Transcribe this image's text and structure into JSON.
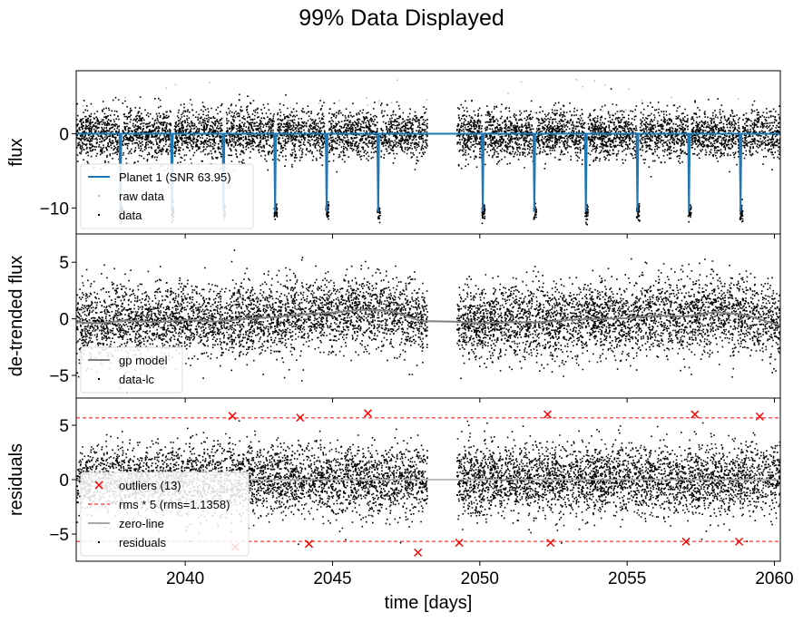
{
  "figure": {
    "title": "99% Data Displayed"
  },
  "colors": {
    "planet": "#1f77b4",
    "raw": "#bbbbbb",
    "data": "#000000",
    "gp": "#808080",
    "outlier": "#ff0000",
    "rms": "#ff0000",
    "zero": "#aaaaaa"
  },
  "chart_data": [
    {
      "type": "scatter",
      "ylabel": "flux",
      "xlim": [
        2036.3,
        2060.2
      ],
      "ylim": [
        -13.5,
        8.5
      ],
      "yticks": [
        -10,
        0
      ],
      "yticklabels": [
        "−10",
        "0"
      ],
      "legend": {
        "placement": "lower-left",
        "entries": [
          "Planet 1 (SNR 63.95)",
          "raw data",
          "data"
        ]
      },
      "series": [
        {
          "name": "Planet 1 (SNR 63.95)",
          "kind": "transit-model",
          "baseline": 0,
          "depth": -10.5,
          "transit_times": [
            2037.8,
            2039.55,
            2041.3,
            2043.05,
            2044.8,
            2046.55,
            2050.1,
            2051.85,
            2053.6,
            2055.35,
            2057.1,
            2058.85
          ]
        },
        {
          "name": "raw data",
          "kind": "points",
          "noise_sd": 1.6
        },
        {
          "name": "data",
          "kind": "points",
          "noise_sd": 1.6
        }
      ],
      "data_gap": [
        2048.2,
        2049.2
      ]
    },
    {
      "type": "scatter",
      "ylabel": "de-trended flux",
      "xlim": [
        2036.3,
        2060.2
      ],
      "ylim": [
        -7.0,
        7.5
      ],
      "yticks": [
        -5,
        0,
        5
      ],
      "yticklabels": [
        "−5",
        "0",
        "5"
      ],
      "legend": {
        "placement": "lower-left",
        "entries": [
          "gp model",
          "data-lc"
        ]
      },
      "series": [
        {
          "name": "gp model",
          "kind": "line",
          "x": [
            2036.3,
            2037,
            2038,
            2039,
            2040,
            2041,
            2042,
            2043,
            2044,
            2045,
            2046,
            2047,
            2048,
            2049.2,
            2050,
            2051,
            2052,
            2053,
            2054,
            2055,
            2056,
            2057,
            2058,
            2059,
            2060.2
          ],
          "y": [
            -0.3,
            -0.4,
            -0.15,
            -0.3,
            -0.1,
            -0.25,
            0.0,
            0.15,
            0.4,
            0.55,
            0.8,
            0.7,
            -0.2,
            -0.25,
            -0.4,
            -0.3,
            -0.3,
            -0.1,
            0.0,
            0.05,
            0.3,
            0.2,
            0.6,
            0.35,
            -0.6
          ]
        },
        {
          "name": "data-lc",
          "kind": "points",
          "noise_sd": 1.6
        }
      ]
    },
    {
      "type": "scatter",
      "xlabel": "time [days]",
      "ylabel": "residuals",
      "xlim": [
        2036.3,
        2060.2
      ],
      "ylim": [
        -7.5,
        7.5
      ],
      "xticks": [
        2040,
        2045,
        2050,
        2055,
        2060
      ],
      "xticklabels": [
        "2040",
        "2045",
        "2050",
        "2055",
        "2060"
      ],
      "yticks": [
        -5,
        0,
        5
      ],
      "yticklabels": [
        "−5",
        "0",
        "5"
      ],
      "legend": {
        "placement": "lower-left",
        "entries": [
          "outliers (13)",
          "rms * 5 (rms=1.1358)",
          "zero-line",
          "residuals"
        ]
      },
      "rms": 1.1358,
      "rms_multiplier": 5,
      "series": [
        {
          "name": "outliers (13)",
          "kind": "markers",
          "x": [
            2041.6,
            2043.9,
            2046.2,
            2052.3,
            2057.3,
            2059.5,
            2041.7,
            2044.2,
            2047.9,
            2049.3,
            2052.4,
            2057.0,
            2058.8
          ],
          "y": [
            5.85,
            5.7,
            6.1,
            6.0,
            6.0,
            5.8,
            -6.2,
            -5.9,
            -6.7,
            -5.8,
            -5.8,
            -5.7,
            -5.7
          ]
        },
        {
          "name": "rms * 5 (rms=1.1358)",
          "kind": "hlines",
          "y": [
            5.679,
            -5.679
          ]
        },
        {
          "name": "zero-line",
          "kind": "hline",
          "y": 0
        },
        {
          "name": "residuals",
          "kind": "points",
          "noise_sd": 1.6
        }
      ]
    }
  ]
}
